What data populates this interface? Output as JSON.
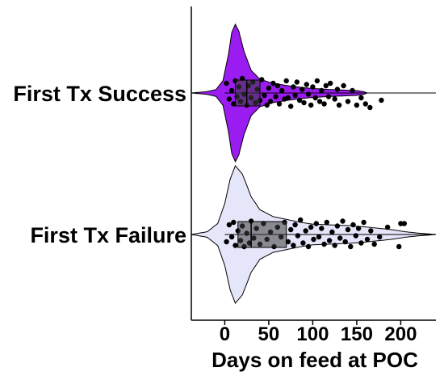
{
  "chart_data": {
    "type": "violin",
    "orientation": "horizontal",
    "xlabel": "Days on feed at POC",
    "ylabel": "",
    "xlim": [
      -38,
      240
    ],
    "xticks": [
      0,
      50,
      100,
      150,
      200
    ],
    "xtick_labels": [
      "0",
      "50",
      "100",
      "150",
      "200"
    ],
    "grid": false,
    "legend": "none",
    "series": [
      {
        "name": "First Tx Success",
        "color": "#9b1cf0",
        "box": {
          "q1": 12,
          "median": 25,
          "q3": 40,
          "whisker_low": 0,
          "whisker_high": 240
        },
        "points": [
          [
            2,
            -0.08
          ],
          [
            5,
            0.05
          ],
          [
            8,
            -0.02
          ],
          [
            10,
            0.09
          ],
          [
            12,
            -0.1
          ],
          [
            14,
            0.03
          ],
          [
            16,
            -0.05
          ],
          [
            18,
            0.07
          ],
          [
            20,
            -0.12
          ],
          [
            22,
            0.01
          ],
          [
            25,
            0.1
          ],
          [
            27,
            -0.06
          ],
          [
            30,
            0.04
          ],
          [
            32,
            -0.09
          ],
          [
            35,
            0.08
          ],
          [
            37,
            -0.03
          ],
          [
            40,
            0.06
          ],
          [
            42,
            -0.11
          ],
          [
            45,
            0.02
          ],
          [
            48,
            0.1
          ],
          [
            50,
            -0.04
          ],
          [
            52,
            0.07
          ],
          [
            55,
            -0.08
          ],
          [
            58,
            0.03
          ],
          [
            60,
            -0.06
          ],
          [
            62,
            0.09
          ],
          [
            65,
            -0.02
          ],
          [
            68,
            0.05
          ],
          [
            70,
            -0.1
          ],
          [
            72,
            0.04
          ],
          [
            75,
            0.11
          ],
          [
            78,
            -0.05
          ],
          [
            80,
            0.02
          ],
          [
            82,
            -0.09
          ],
          [
            85,
            0.06
          ],
          [
            88,
            -0.03
          ],
          [
            90,
            0.08
          ],
          [
            93,
            -0.07
          ],
          [
            95,
            0.01
          ],
          [
            98,
            0.1
          ],
          [
            100,
            -0.05
          ],
          [
            103,
            0.04
          ],
          [
            105,
            -0.1
          ],
          [
            108,
            0.07
          ],
          [
            110,
            -0.02
          ],
          [
            113,
            0.09
          ],
          [
            115,
            -0.06
          ],
          [
            118,
            0.03
          ],
          [
            120,
            -0.08
          ],
          [
            125,
            0.05
          ],
          [
            128,
            -0.03
          ],
          [
            130,
            0.1
          ],
          [
            135,
            -0.06
          ],
          [
            140,
            0.07
          ],
          [
            145,
            -0.02
          ],
          [
            150,
            0.1
          ],
          [
            155,
            0.04
          ],
          [
            160,
            0.09
          ],
          [
            165,
            0.12
          ],
          [
            178,
            0.06
          ]
        ]
      },
      {
        "name": "First Tx Failure",
        "color": "#e6e6fa",
        "box": {
          "q1": 15,
          "median": 30,
          "q3": 70,
          "whisker_low": 0,
          "whisker_high": 240
        },
        "points": [
          [
            2,
            0.06
          ],
          [
            5,
            -0.08
          ],
          [
            8,
            0.02
          ],
          [
            10,
            -0.1
          ],
          [
            12,
            0.09
          ],
          [
            15,
            -0.03
          ],
          [
            18,
            0.05
          ],
          [
            20,
            -0.07
          ],
          [
            22,
            0.1
          ],
          [
            25,
            -0.01
          ],
          [
            28,
            0.07
          ],
          [
            30,
            -0.11
          ],
          [
            33,
            0.03
          ],
          [
            36,
            -0.05
          ],
          [
            40,
            0.08
          ],
          [
            44,
            -0.09
          ],
          [
            48,
            0.04
          ],
          [
            52,
            -0.02
          ],
          [
            56,
            0.1
          ],
          [
            60,
            -0.06
          ],
          [
            64,
            0.02
          ],
          [
            68,
            -0.1
          ],
          [
            72,
            0.06
          ],
          [
            75,
            -0.04
          ],
          [
            78,
            0.09
          ],
          [
            80,
            -0.08
          ],
          [
            83,
            0.01
          ],
          [
            86,
            -0.12
          ],
          [
            89,
            0.07
          ],
          [
            92,
            -0.03
          ],
          [
            95,
            0.1
          ],
          [
            98,
            -0.06
          ],
          [
            101,
            0.04
          ],
          [
            104,
            -0.09
          ],
          [
            107,
            0.02
          ],
          [
            110,
            -0.05
          ],
          [
            113,
            0.08
          ],
          [
            116,
            -0.1
          ],
          [
            119,
            0.05
          ],
          [
            122,
            -0.02
          ],
          [
            125,
            0.09
          ],
          [
            128,
            -0.07
          ],
          [
            131,
            0.03
          ],
          [
            134,
            -0.11
          ],
          [
            137,
            0.06
          ],
          [
            140,
            -0.04
          ],
          [
            143,
            0.1
          ],
          [
            146,
            -0.08
          ],
          [
            149,
            0.01
          ],
          [
            152,
            -0.05
          ],
          [
            155,
            0.07
          ],
          [
            158,
            -0.1
          ],
          [
            162,
            0.04
          ],
          [
            166,
            -0.03
          ],
          [
            170,
            0.08
          ],
          [
            176,
            0.02
          ],
          [
            185,
            -0.06
          ],
          [
            198,
            0.1
          ],
          [
            200,
            -0.09
          ],
          [
            204,
            -0.09
          ]
        ]
      }
    ]
  }
}
